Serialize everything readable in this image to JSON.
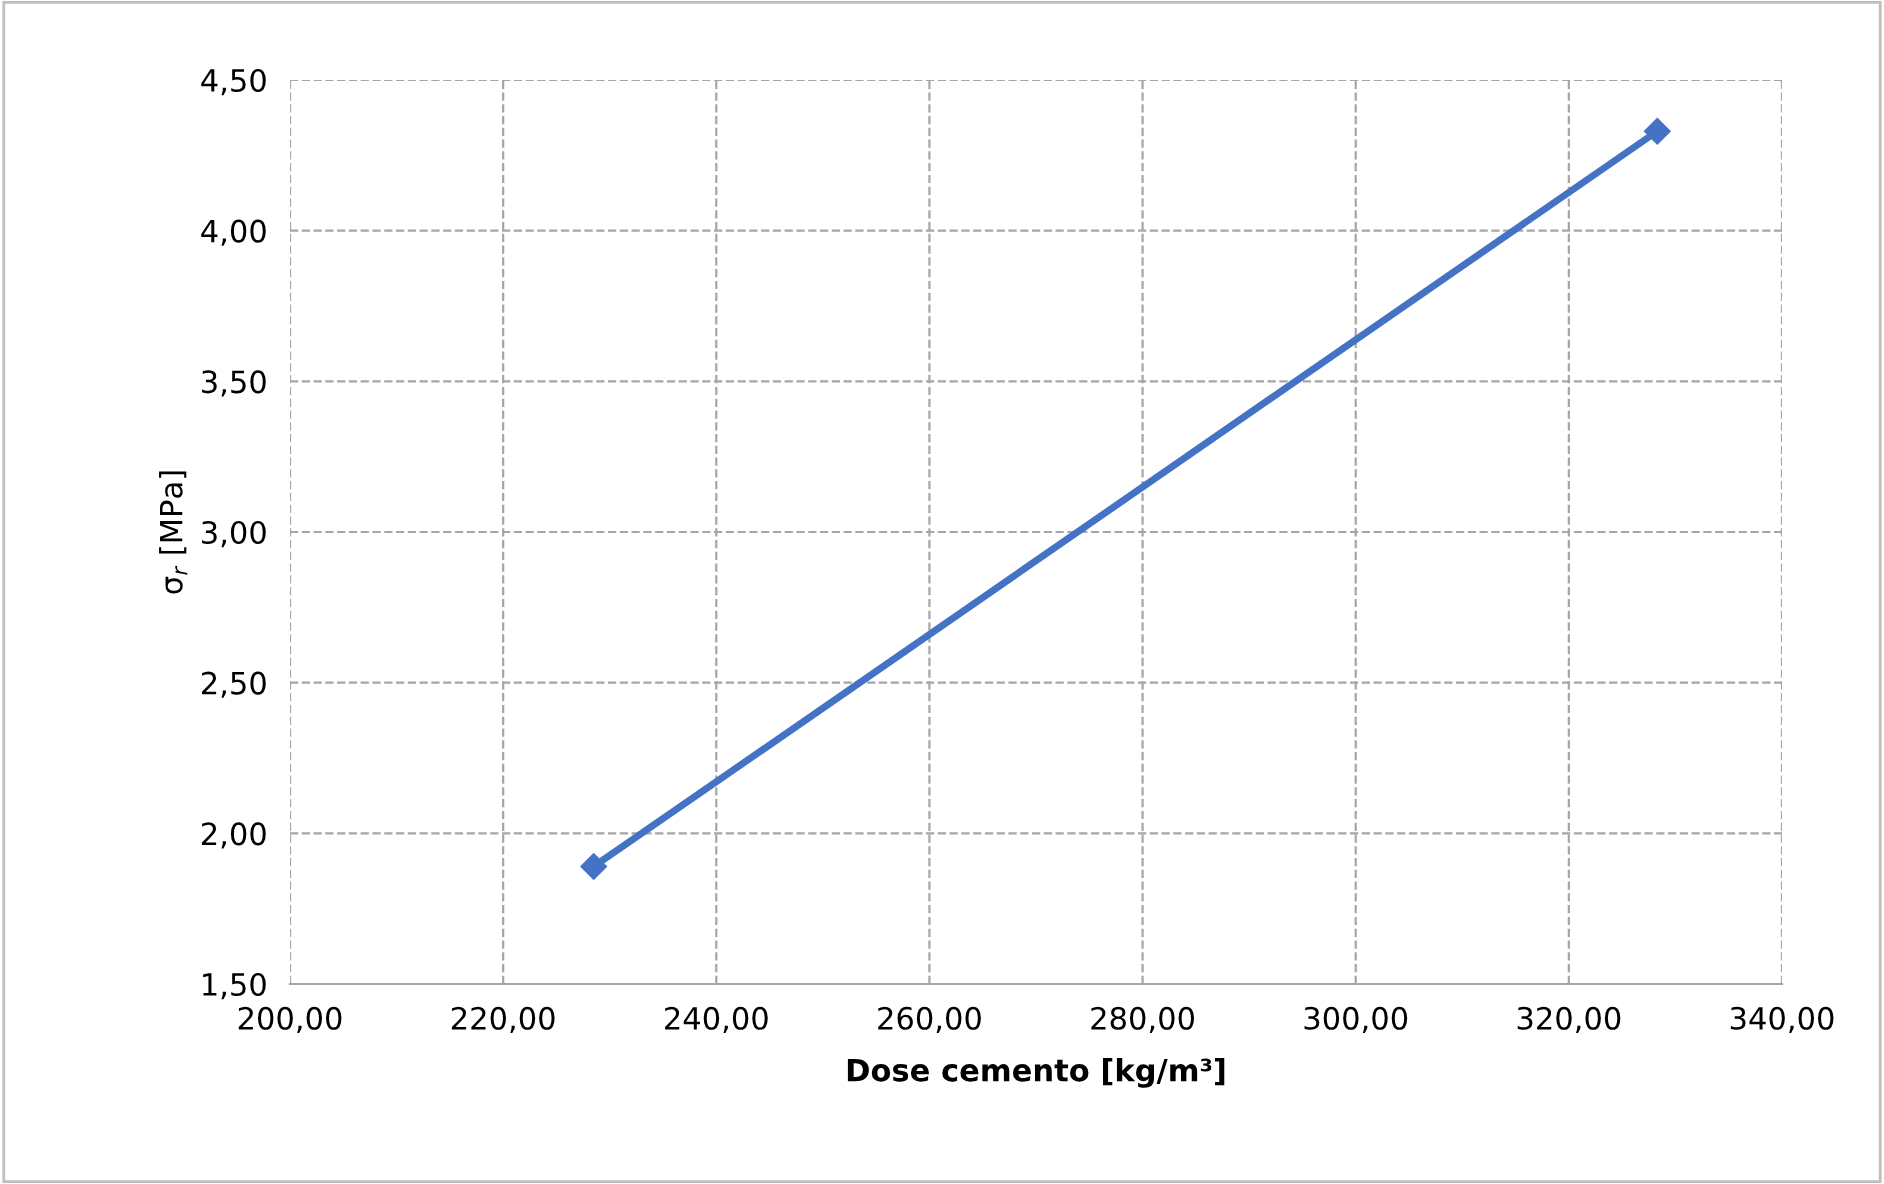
{
  "chart_data": {
    "type": "line",
    "xlabel": "Dose cemento [kg/m³]",
    "ylabel": "σ$_{r}$ [MPa]",
    "x": [
      228.5,
      328.3
    ],
    "series": [
      {
        "color": "#4472c4",
        "values": [
          1.89,
          4.33
        ]
      }
    ],
    "marker": "diamond",
    "line_style": "solid",
    "grid": true,
    "xlim": [
      200,
      340
    ],
    "ylim": [
      1.5,
      4.5
    ],
    "xticks": [
      {
        "value": 200,
        "label": "200,00"
      },
      {
        "value": 220,
        "label": "220,00"
      },
      {
        "value": 240,
        "label": "240,00"
      },
      {
        "value": 260,
        "label": "260,00"
      },
      {
        "value": 280,
        "label": "280,00"
      },
      {
        "value": 300,
        "label": "300,00"
      },
      {
        "value": 320,
        "label": "320,00"
      },
      {
        "value": 340,
        "label": "340,00"
      }
    ],
    "yticks": [
      {
        "value": 1.5,
        "label": "1,50"
      },
      {
        "value": 2,
        "label": "2,00"
      },
      {
        "value": 2.5,
        "label": "2,50"
      },
      {
        "value": 3,
        "label": "3,00"
      },
      {
        "value": 3.5,
        "label": "3,50"
      },
      {
        "value": 4,
        "label": "4,00"
      },
      {
        "value": 4.5,
        "label": "4,50"
      }
    ]
  }
}
